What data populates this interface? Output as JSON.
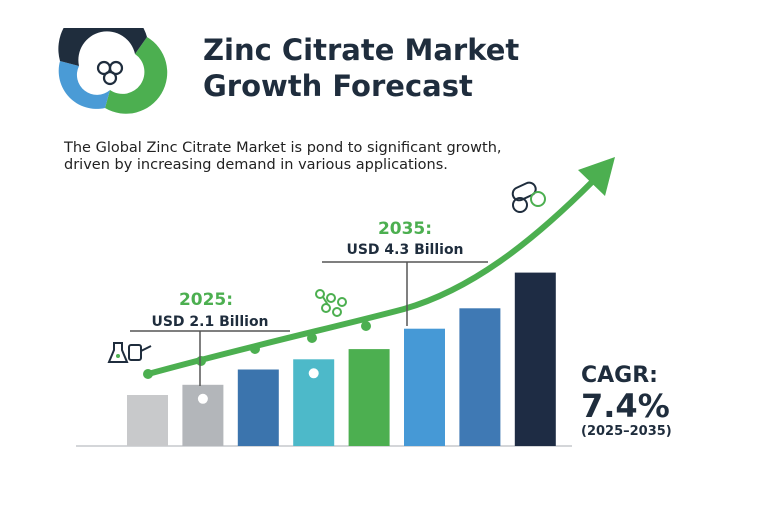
{
  "header": {
    "title_line1": "Zinc Citrate Market",
    "title_line2": "Growth Forecast"
  },
  "intro_text": "The Global Zinc Citrate Market is pond to significant growth, driven by increasing demand in various applications.",
  "annotations": [
    {
      "year": "2025:",
      "value": "USD 2.1 Billion"
    },
    {
      "year": "2035:",
      "value": "USD 4.3 Billion"
    }
  ],
  "cagr": {
    "label": "CAGR:",
    "value": "7.4%",
    "range": "(2025–2035)"
  },
  "icons": [
    "donut-chart-logo-icon",
    "flask-beakers-icon",
    "molecule-icon",
    "capsule-pills-icon"
  ],
  "colors": {
    "title": "#1f2d3d",
    "accent_green": "#4caf50",
    "trend_arrow": "#4fb748"
  },
  "chart_data": {
    "type": "bar",
    "title": "",
    "xlabel": "",
    "ylabel": "",
    "categories": [
      "",
      "",
      "",
      "",
      "",
      "",
      "",
      ""
    ],
    "values": [
      1.0,
      1.2,
      1.5,
      1.7,
      1.9,
      2.3,
      2.7,
      3.4
    ],
    "bar_colors": [
      "#c8c9cb",
      "#b3b6ba",
      "#3b74ad",
      "#4db9c9",
      "#4caf50",
      "#4699d6",
      "#3f79b4",
      "#1e2c44"
    ],
    "trend_line": {
      "color": "#4caf50",
      "style": "rising arrow with markers"
    },
    "grid": false,
    "axes_labels_shown": false
  }
}
